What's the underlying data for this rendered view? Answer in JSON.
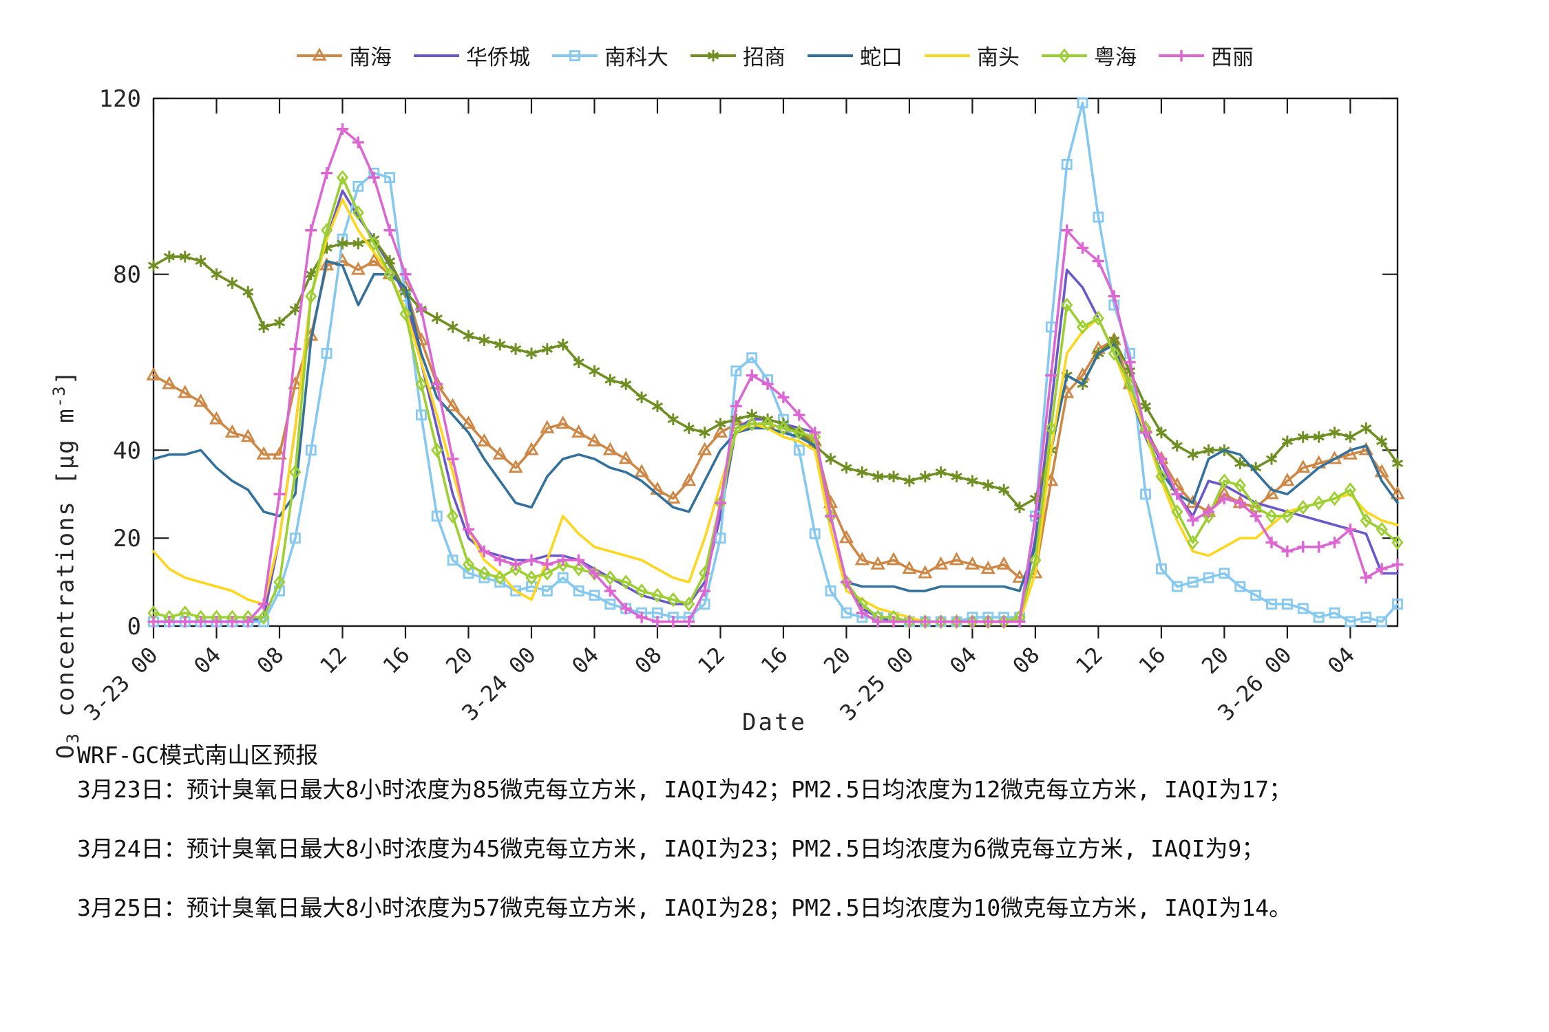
{
  "chart_data": {
    "type": "line",
    "title": "",
    "xlabel": "Date",
    "ylabel": {
      "prefix": "O",
      "sub": "3",
      "mid": " concentrations [μg m",
      "sup": "-3",
      "suffix": "]"
    },
    "ylim": [
      0,
      120
    ],
    "yticks": [
      0,
      20,
      40,
      80,
      120
    ],
    "x_hours_total": 79,
    "marker_every": 1,
    "legend_position": "top-center",
    "grid": "off",
    "xticks": [
      {
        "h": 0,
        "label": "3-23 00"
      },
      {
        "h": 4,
        "label": "04"
      },
      {
        "h": 8,
        "label": "08"
      },
      {
        "h": 12,
        "label": "12"
      },
      {
        "h": 16,
        "label": "16"
      },
      {
        "h": 20,
        "label": "20"
      },
      {
        "h": 24,
        "label": "3-24 00"
      },
      {
        "h": 28,
        "label": "04"
      },
      {
        "h": 32,
        "label": "08"
      },
      {
        "h": 36,
        "label": "12"
      },
      {
        "h": 40,
        "label": "16"
      },
      {
        "h": 44,
        "label": "20"
      },
      {
        "h": 48,
        "label": "3-25 00"
      },
      {
        "h": 52,
        "label": "04"
      },
      {
        "h": 56,
        "label": "08"
      },
      {
        "h": 60,
        "label": "12"
      },
      {
        "h": 64,
        "label": "16"
      },
      {
        "h": 68,
        "label": "20"
      },
      {
        "h": 72,
        "label": "3-26 00"
      },
      {
        "h": 76,
        "label": "04"
      }
    ],
    "series": [
      {
        "name": "南海",
        "color": "#CE8745",
        "marker": "triangle",
        "values": [
          57,
          55,
          53,
          51,
          47,
          44,
          43,
          39,
          39,
          55,
          66,
          82,
          83,
          81,
          83,
          80,
          77,
          65,
          55,
          50,
          46,
          42,
          39,
          36,
          40,
          45,
          46,
          44,
          42,
          40,
          38,
          35,
          31,
          29,
          33,
          40,
          44,
          46,
          46,
          46,
          45,
          44,
          42,
          28,
          20,
          15,
          14,
          15,
          13,
          12,
          14,
          15,
          14,
          13,
          14,
          11,
          12,
          33,
          53,
          57,
          63,
          65,
          55,
          45,
          38,
          32,
          28,
          26,
          30,
          28,
          27,
          30,
          33,
          36,
          37,
          38,
          39,
          40,
          35,
          30
        ]
      },
      {
        "name": "华侨城",
        "color": "#6A58C9",
        "marker": "none",
        "values": [
          1,
          1,
          1,
          1,
          1,
          1,
          1,
          2,
          20,
          45,
          75,
          88,
          99,
          93,
          88,
          82,
          75,
          60,
          45,
          30,
          20,
          17,
          16,
          15,
          15,
          16,
          16,
          15,
          13,
          11,
          9,
          7,
          6,
          5,
          5,
          10,
          25,
          45,
          47,
          47,
          46,
          45,
          44,
          25,
          10,
          4,
          2,
          1,
          1,
          1,
          1,
          1,
          1,
          1,
          1,
          1,
          20,
          50,
          81,
          77,
          70,
          62,
          55,
          45,
          37,
          30,
          25,
          33,
          32,
          30,
          28,
          27,
          26,
          25,
          24,
          23,
          22,
          21,
          12,
          12
        ]
      },
      {
        "name": "南科大",
        "color": "#85C8F0",
        "marker": "square",
        "values": [
          1,
          1,
          1,
          1,
          1,
          1,
          1,
          1,
          8,
          20,
          40,
          62,
          88,
          100,
          103,
          102,
          75,
          48,
          25,
          15,
          12,
          11,
          10,
          8,
          9,
          8,
          11,
          8,
          7,
          5,
          4,
          3,
          3,
          2,
          2,
          5,
          20,
          58,
          61,
          56,
          47,
          40,
          21,
          8,
          3,
          2,
          2,
          2,
          1,
          1,
          1,
          1,
          2,
          2,
          2,
          2,
          25,
          68,
          105,
          119,
          93,
          73,
          62,
          30,
          13,
          9,
          10,
          11,
          12,
          9,
          7,
          5,
          5,
          4,
          2,
          3,
          1,
          2,
          1,
          5
        ]
      },
      {
        "name": "招商",
        "color": "#6F8F23",
        "marker": "star",
        "values": [
          82,
          84,
          84,
          83,
          80,
          78,
          76,
          68,
          69,
          72,
          80,
          86,
          87,
          87,
          88,
          83,
          76,
          72,
          70,
          68,
          66,
          65,
          64,
          63,
          62,
          63,
          64,
          60,
          58,
          56,
          55,
          52,
          50,
          47,
          45,
          44,
          46,
          47,
          48,
          47,
          46,
          44,
          41,
          38,
          36,
          35,
          34,
          34,
          33,
          34,
          35,
          34,
          33,
          32,
          31,
          27,
          29,
          40,
          57,
          55,
          62,
          65,
          58,
          50,
          44,
          41,
          39,
          40,
          40,
          37,
          36,
          38,
          42,
          43,
          43,
          44,
          43,
          45,
          42,
          37
        ]
      },
      {
        "name": "蛇口",
        "color": "#33719C",
        "marker": "none",
        "values": [
          38,
          39,
          39,
          40,
          36,
          33,
          31,
          26,
          25,
          30,
          65,
          83,
          82,
          73,
          80,
          80,
          77,
          62,
          52,
          48,
          44,
          38,
          33,
          28,
          27,
          34,
          38,
          39,
          38,
          36,
          35,
          33,
          30,
          27,
          26,
          33,
          40,
          44,
          45,
          45,
          44,
          43,
          41,
          25,
          10,
          9,
          9,
          9,
          8,
          8,
          9,
          9,
          9,
          9,
          9,
          8,
          18,
          40,
          57,
          55,
          62,
          64,
          53,
          43,
          35,
          30,
          28,
          38,
          40,
          39,
          35,
          31,
          30,
          33,
          36,
          38,
          40,
          41,
          33,
          28
        ]
      },
      {
        "name": "南头",
        "color": "#FFD61E",
        "marker": "none",
        "values": [
          17,
          13,
          11,
          10,
          9,
          8,
          6,
          5,
          20,
          45,
          75,
          88,
          97,
          90,
          85,
          80,
          72,
          60,
          48,
          35,
          22,
          15,
          12,
          8,
          6,
          15,
          25,
          21,
          18,
          17,
          16,
          15,
          13,
          11,
          10,
          20,
          32,
          44,
          46,
          45,
          43,
          42,
          40,
          22,
          8,
          6,
          4,
          3,
          2,
          1,
          1,
          1,
          1,
          1,
          1,
          1,
          12,
          40,
          62,
          67,
          70,
          62,
          53,
          44,
          33,
          24,
          17,
          16,
          18,
          20,
          20,
          23,
          26,
          27,
          28,
          29,
          30,
          26,
          24,
          23
        ]
      },
      {
        "name": "粤海",
        "color": "#9CCF32",
        "marker": "diamond",
        "values": [
          3,
          2,
          3,
          2,
          2,
          2,
          2,
          2,
          10,
          35,
          75,
          90,
          102,
          94,
          87,
          80,
          71,
          55,
          40,
          25,
          14,
          12,
          11,
          13,
          11,
          12,
          14,
          13,
          12,
          11,
          10,
          8,
          7,
          6,
          5,
          12,
          28,
          45,
          46,
          46,
          45,
          44,
          43,
          25,
          10,
          5,
          2,
          2,
          1,
          1,
          1,
          1,
          1,
          1,
          1,
          2,
          15,
          45,
          73,
          68,
          70,
          62,
          55,
          45,
          34,
          26,
          19,
          25,
          33,
          32,
          27,
          25,
          25,
          27,
          28,
          29,
          31,
          24,
          22,
          19
        ]
      },
      {
        "name": "西丽",
        "color": "#DC66D2",
        "marker": "plus",
        "values": [
          1,
          1,
          1,
          1,
          1,
          1,
          1,
          5,
          30,
          63,
          90,
          103,
          113,
          110,
          102,
          90,
          80,
          72,
          55,
          38,
          22,
          17,
          15,
          14,
          15,
          14,
          15,
          15,
          12,
          8,
          4,
          2,
          1,
          1,
          1,
          8,
          28,
          50,
          57,
          55,
          52,
          48,
          44,
          25,
          10,
          3,
          1,
          1,
          1,
          1,
          1,
          1,
          1,
          1,
          1,
          1,
          25,
          57,
          90,
          86,
          83,
          75,
          60,
          44,
          38,
          30,
          24,
          26,
          29,
          28,
          25,
          19,
          17,
          18,
          18,
          19,
          22,
          11,
          13,
          14
        ]
      }
    ]
  },
  "footer": {
    "title": "WRF-GC模式南山区预报",
    "lines": [
      "3月23日：预计臭氧日最大8小时浓度为85微克每立方米, IAQI为42；PM2.5日均浓度为12微克每立方米, IAQI为17；",
      "3月24日：预计臭氧日最大8小时浓度为45微克每立方米, IAQI为23；PM2.5日均浓度为6微克每立方米, IAQI为9；",
      "3月25日：预计臭氧日最大8小时浓度为57微克每立方米, IAQI为28；PM2.5日均浓度为10微克每立方米, IAQI为14。"
    ]
  }
}
